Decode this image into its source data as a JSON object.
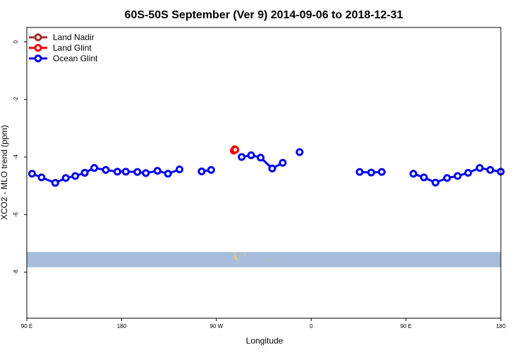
{
  "chart_data": {
    "type": "line",
    "title": "60S-50S September (Ver 9)   2014-09-06 to 2018-12-31",
    "xlabel": "Longitude",
    "ylabel": "XCO2 - MLO trend (ppm)",
    "x_ticks": [
      {
        "value": 90,
        "label": "90 E"
      },
      {
        "value": 180,
        "label": "180"
      },
      {
        "value": 270,
        "label": "90 W"
      },
      {
        "value": 360,
        "label": "0"
      },
      {
        "value": 450,
        "label": "90 E"
      },
      {
        "value": 540,
        "label": "180"
      }
    ],
    "y_ticks": [
      {
        "value": 0,
        "label": "0"
      },
      {
        "value": -2,
        "label": "-2"
      },
      {
        "value": -4,
        "label": "-4"
      },
      {
        "value": -6,
        "label": "-6"
      },
      {
        "value": -8,
        "label": "-8"
      }
    ],
    "xlim": [
      90,
      540
    ],
    "ylim": [
      -9.6,
      0.5
    ],
    "legend_position": "top-left",
    "map_strip": {
      "y_top": -7.3,
      "y_bottom": -7.83,
      "ocean_color": "#a7bddb",
      "land_color": "#f5c969"
    },
    "series": [
      {
        "name": "Land Nadir",
        "color": "#a52a2a",
        "segments": []
      },
      {
        "name": "Land Glint",
        "color": "#ee0000",
        "segments": [
          [
            [
              286.5,
              -3.78
            ],
            [
              287.5,
              -3.73
            ],
            [
              288,
              -3.75
            ]
          ]
        ]
      },
      {
        "name": "Ocean Glint",
        "color": "#0000ee",
        "segments": [
          [
            [
              95,
              -4.58
            ],
            [
              104,
              -4.71
            ],
            [
              117,
              -4.9
            ],
            [
              127,
              -4.73
            ],
            [
              136,
              -4.66
            ],
            [
              145,
              -4.55
            ],
            [
              154,
              -4.38
            ],
            [
              165,
              -4.45
            ],
            [
              176,
              -4.51
            ],
            [
              184,
              -4.51
            ],
            [
              195,
              -4.52
            ],
            [
              203,
              -4.56
            ],
            [
              214,
              -4.48
            ],
            [
              224,
              -4.58
            ],
            [
              235,
              -4.43
            ]
          ],
          [
            [
              256,
              -4.5
            ],
            [
              265,
              -4.45
            ]
          ],
          [
            [
              294,
              -4.0
            ],
            [
              303,
              -3.94
            ],
            [
              312,
              -4.02
            ],
            [
              323,
              -4.4
            ],
            [
              333,
              -4.2
            ]
          ],
          [
            [
              349,
              -3.83
            ]
          ],
          [
            [
              145,
              -4.55
            ]
          ],
          [
            [
              406,
              -4.52
            ],
            [
              417,
              -4.54
            ],
            [
              427,
              -4.52
            ]
          ],
          [
            [
              457,
              -4.58
            ],
            [
              467,
              -4.71
            ],
            [
              478,
              -4.89
            ],
            [
              489,
              -4.73
            ],
            [
              499,
              -4.66
            ],
            [
              509,
              -4.55
            ],
            [
              520,
              -4.38
            ],
            [
              530,
              -4.45
            ],
            [
              540,
              -4.51
            ]
          ]
        ]
      }
    ]
  }
}
